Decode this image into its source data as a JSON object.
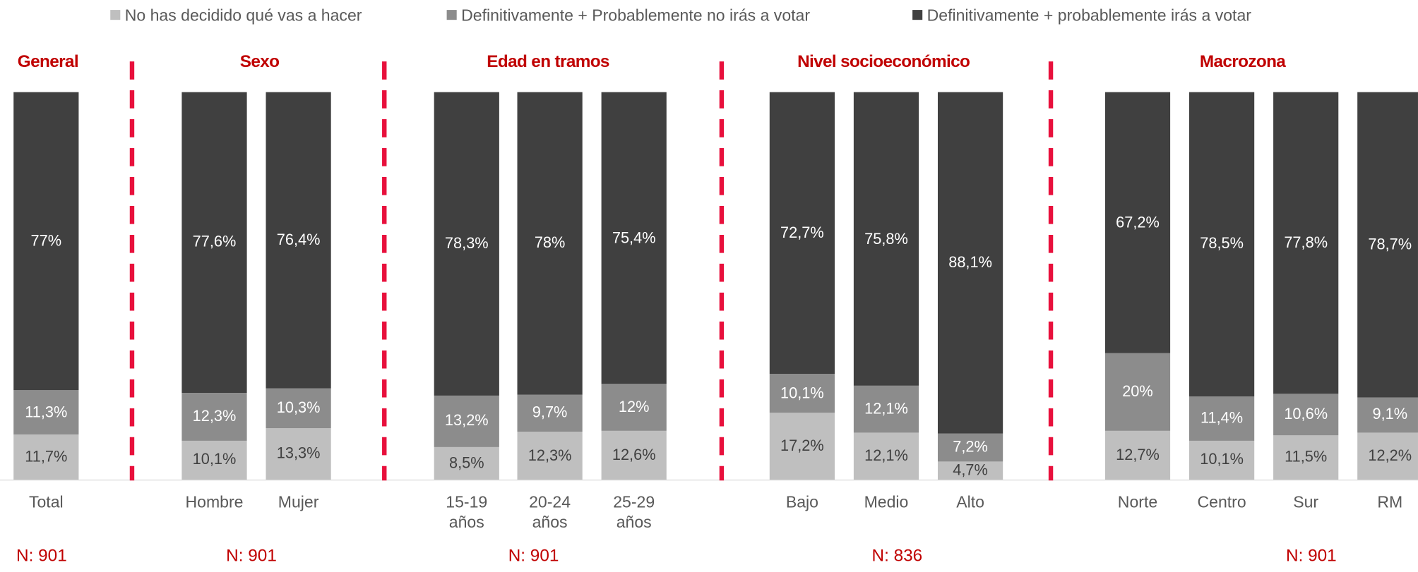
{
  "chart_data": {
    "type": "stacked_bar",
    "ylim": [
      0,
      100
    ],
    "groups": [
      {
        "title": "General",
        "note": "N: 901",
        "categories": [
          "Total"
        ]
      },
      {
        "title": "Sexo",
        "note": "N: 901",
        "categories": [
          "Hombre",
          "Mujer"
        ]
      },
      {
        "title": "Edad en tramos",
        "note": "N: 901",
        "categories": [
          "15-19 años",
          "20-24 años",
          "25-29 años"
        ]
      },
      {
        "title": "Nivel socioeconómico",
        "note": "N: 836",
        "categories": [
          "Bajo",
          "Medio",
          "Alto"
        ]
      },
      {
        "title": "Macrozona",
        "note": "N: 901",
        "categories": [
          "Norte",
          "Centro",
          "Sur",
          "RM"
        ]
      }
    ],
    "series": [
      {
        "name": "No has decidido qué vas a hacer",
        "color": "#bfbfbf",
        "label_color": "#404040",
        "values": [
          11.7,
          10.1,
          13.3,
          8.5,
          12.3,
          12.6,
          17.2,
          12.1,
          4.7,
          12.7,
          10.1,
          11.5,
          12.2
        ],
        "value_labels": [
          "11,7%",
          "10,1%",
          "13,3%",
          "8,5%",
          "12,3%",
          "12,6%",
          "17,2%",
          "12,1%",
          "4,7%",
          "12,7%",
          "10,1%",
          "11,5%",
          "12,2%"
        ]
      },
      {
        "name": "Definitivamente + Probablemente no irás a votar",
        "color": "#8c8c8c",
        "label_color": "#ffffff",
        "values": [
          11.3,
          12.3,
          10.3,
          13.2,
          9.7,
          12,
          10.1,
          12.1,
          7.2,
          20,
          11.4,
          10.6,
          9.1
        ],
        "value_labels": [
          "11,3%",
          "12,3%",
          "10,3%",
          "13,2%",
          "9,7%",
          "12%",
          "10,1%",
          "12,1%",
          "7,2%",
          "20%",
          "11,4%",
          "10,6%",
          "9,1%"
        ]
      },
      {
        "name": "Definitivamente + probablemente irás a votar",
        "color": "#404040",
        "label_color": "#ffffff",
        "values": [
          77,
          77.6,
          76.4,
          78.3,
          78,
          75.4,
          72.7,
          75.8,
          88.1,
          67.2,
          78.5,
          77.8,
          78.7
        ],
        "value_labels": [
          "77%",
          "77,6%",
          "76,4%",
          "78,3%",
          "78%",
          "75,4%",
          "72,7%",
          "75,8%",
          "88,1%",
          "67,2%",
          "78,5%",
          "77,8%",
          "78,7%"
        ]
      }
    ]
  }
}
